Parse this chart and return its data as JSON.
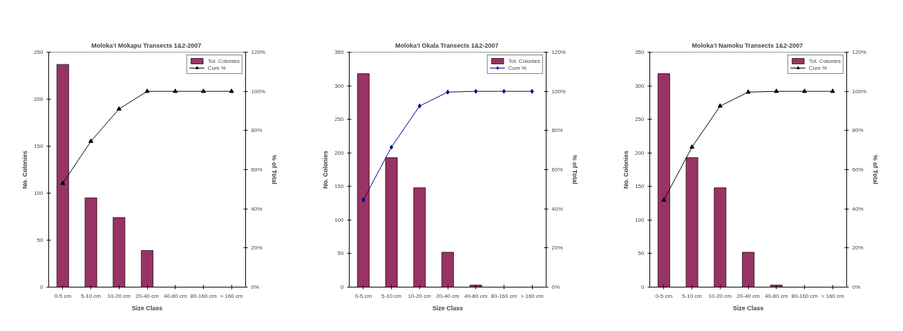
{
  "chart_data": [
    {
      "type": "bar",
      "title": "Moloka‘I  Mokapu Transects 1&2-2007",
      "xlabel": "Size Class",
      "ylabel": "No. Colonies",
      "y2label": "% of Total",
      "categories": [
        "0-5 cm",
        "5-10 cm",
        "10-20 cm",
        "20-40 cm",
        "40-80 cm",
        "80-160 cm",
        "> 160 cm"
      ],
      "series": [
        {
          "name": "Tot. Colonies",
          "color": "#993366",
          "values": [
            237,
            95,
            74,
            39,
            0,
            0,
            0
          ]
        },
        {
          "name": "Cum %",
          "type": "line",
          "axis": "y2",
          "color": "#000000",
          "values": [
            53,
            74.5,
            91,
            100,
            100,
            100,
            100
          ]
        }
      ],
      "marker": "triangle",
      "ylim": [
        0,
        250
      ],
      "yticks": [
        0,
        50,
        100,
        150,
        200,
        250
      ],
      "y2lim": [
        0,
        120
      ],
      "y2ticks": [
        {
          "value": 0,
          "label": "0%"
        },
        {
          "value": 20,
          "label": "20%"
        },
        {
          "value": 40,
          "label": "40%"
        },
        {
          "value": 60,
          "label": "60%"
        },
        {
          "value": 80,
          "label": "80%"
        },
        {
          "value": 100,
          "label": "100%"
        },
        {
          "value": 120,
          "label": "120%"
        }
      ],
      "grid": false,
      "legend": "top right"
    },
    {
      "type": "bar",
      "title": "Moloka‘I  Okala Transects 1&2-2007",
      "xlabel": "Size Class",
      "ylabel": "No. Colonies",
      "y2label": "% of Total",
      "categories": [
        "0-5 cm",
        "5-10 cm",
        "10-20 cm",
        "20-40 cm",
        "40-80 cm",
        "80-160 cm",
        "> 160 cm"
      ],
      "series": [
        {
          "name": "Tot. Colonies",
          "color": "#993366",
          "values": [
            318,
            193,
            148,
            52,
            3,
            0,
            0
          ]
        },
        {
          "name": "Cum %",
          "type": "line",
          "axis": "y2",
          "color": "#000080",
          "values": [
            44.5,
            71.5,
            92.5,
            99.6,
            100,
            100,
            100
          ]
        }
      ],
      "marker": "diamond",
      "ylim": [
        0,
        350
      ],
      "yticks": [
        0,
        50,
        100,
        150,
        200,
        250,
        300,
        350
      ],
      "y2lim": [
        0,
        120
      ],
      "y2ticks": [
        {
          "value": 0,
          "label": "0%"
        },
        {
          "value": 20,
          "label": "20%"
        },
        {
          "value": 40,
          "label": "40%"
        },
        {
          "value": 60,
          "label": "60%"
        },
        {
          "value": 80,
          "label": "80%"
        },
        {
          "value": 100,
          "label": "100%"
        },
        {
          "value": 120,
          "label": "120%"
        }
      ],
      "grid": false,
      "legend": "top right"
    },
    {
      "type": "bar",
      "title": "Moloka‘I  Namoku Transects 1&2-2007",
      "xlabel": "Size Class",
      "ylabel": "No. Colonies",
      "y2label": "% of Total",
      "categories": [
        "0-5 cm",
        "5-10 cm",
        "10-20 cm",
        "20-40 cm",
        "40-80 cm",
        "80-160 cm",
        "> 160 cm"
      ],
      "series": [
        {
          "name": "Tot. Colonies",
          "color": "#993366",
          "values": [
            318,
            193,
            148,
            52,
            3,
            0,
            0
          ]
        },
        {
          "name": "Cum %",
          "type": "line",
          "axis": "y2",
          "color": "#000000",
          "values": [
            44.5,
            71.5,
            92.5,
            99.6,
            100,
            100,
            100
          ]
        }
      ],
      "marker": "triangle",
      "ylim": [
        0,
        350
      ],
      "yticks": [
        0,
        50,
        100,
        150,
        200,
        250,
        300,
        350
      ],
      "y2lim": [
        0,
        120
      ],
      "y2ticks": [
        {
          "value": 0,
          "label": "0%"
        },
        {
          "value": 20,
          "label": "20%"
        },
        {
          "value": 40,
          "label": "40%"
        },
        {
          "value": 60,
          "label": "60%"
        },
        {
          "value": 80,
          "label": "80%"
        },
        {
          "value": 100,
          "label": "100%"
        },
        {
          "value": 120,
          "label": "120%"
        }
      ],
      "grid": false,
      "legend": "top right"
    }
  ]
}
